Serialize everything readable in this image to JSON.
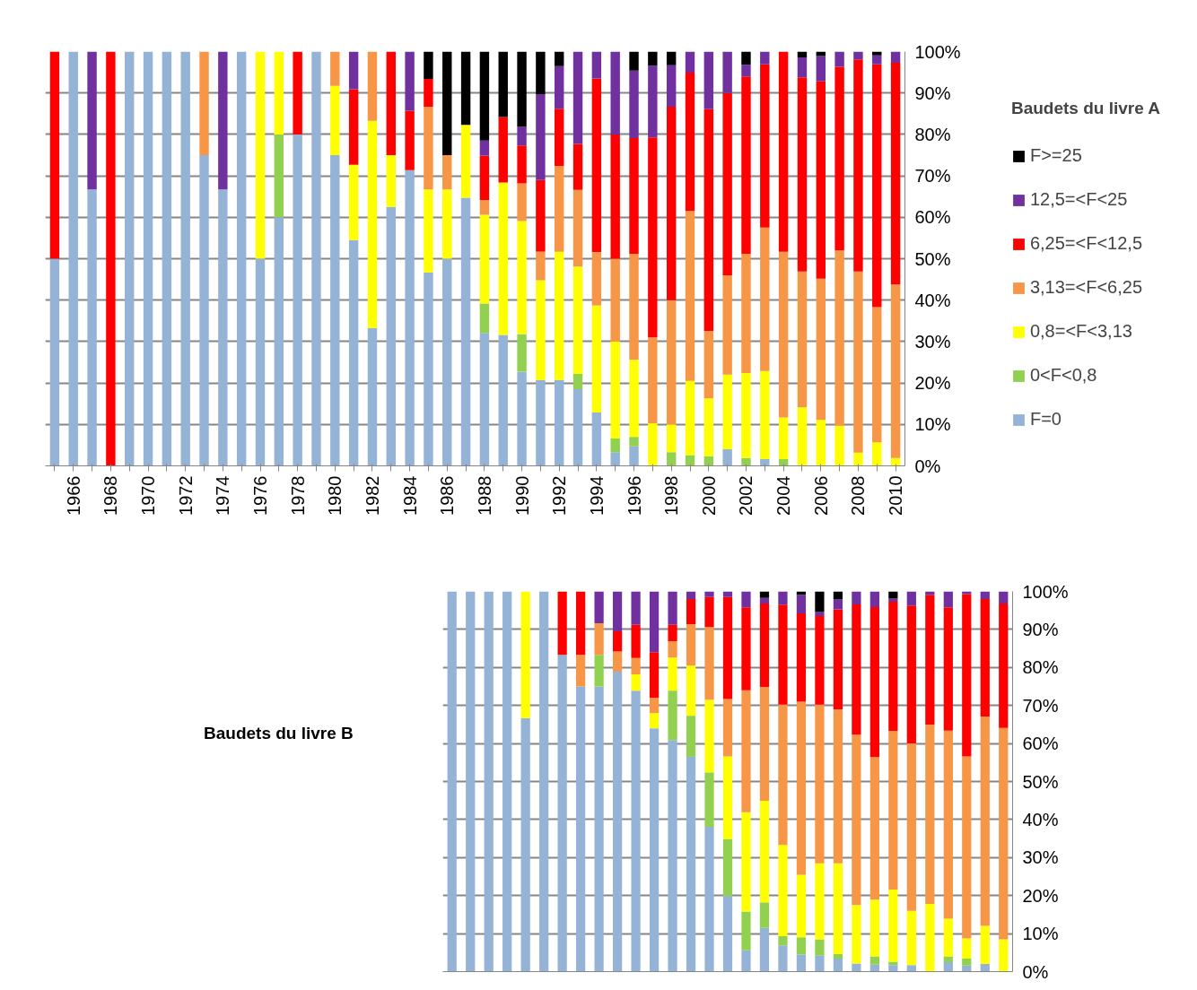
{
  "chart_data": [
    {
      "type": "bar",
      "stacked": true,
      "legend_title": "Baudets du livre A",
      "categories": [
        null,
        "1966",
        null,
        "1968",
        null,
        "1970",
        null,
        "1972",
        null,
        "1974",
        null,
        "1976",
        null,
        "1978",
        null,
        "1980",
        null,
        "1982",
        null,
        "1984",
        null,
        "1986",
        null,
        "1988",
        null,
        "1990",
        null,
        "1992",
        null,
        "1994",
        null,
        "1996",
        null,
        "1998",
        null,
        "2000",
        null,
        "2002",
        null,
        "2004",
        null,
        "2006",
        null,
        "2008",
        null,
        "2010"
      ],
      "series": [
        {
          "name": "F=0",
          "color": "#95b3d7",
          "values": [
            50,
            100,
            66.7,
            0,
            100,
            100,
            100,
            100,
            75,
            66.7,
            100,
            50,
            60,
            80,
            100,
            75,
            54.5,
            33.3,
            62.5,
            71.4,
            46.7,
            50,
            64.7,
            32.1,
            31.6,
            22.7,
            20.7,
            20.7,
            18.5,
            12.9,
            3.3,
            4.7,
            0,
            0,
            0,
            0,
            4,
            0,
            1.6,
            0,
            0,
            0,
            0,
            0,
            0,
            0
          ]
        },
        {
          "name": "0<F<0,8",
          "color": "#92d050",
          "values": [
            0,
            0,
            0,
            0,
            0,
            0,
            0,
            0,
            0,
            0,
            0,
            0,
            20,
            0,
            0,
            0,
            0,
            0,
            0,
            0,
            0,
            0,
            0,
            7.1,
            0,
            9.1,
            0,
            0,
            3.7,
            0,
            3.3,
            2.3,
            0,
            3.3,
            2.6,
            2.3,
            0,
            1.9,
            0,
            1.6,
            0,
            0,
            0,
            0,
            0,
            0
          ]
        },
        {
          "name": "0,8=<F<3,13",
          "color": "#ffff00",
          "values": [
            0,
            0,
            0,
            0,
            0,
            0,
            0,
            0,
            0,
            0,
            0,
            50,
            20,
            0,
            0,
            16.7,
            18.2,
            50,
            12.5,
            0,
            20,
            16.7,
            17.6,
            21.4,
            36.8,
            27.3,
            24.1,
            31.0,
            25.9,
            25.8,
            23.4,
            18.6,
            10.3,
            6.7,
            17.9,
            14.0,
            18,
            20.5,
            21.3,
            10.1,
            14.1,
            11.1,
            9.7,
            3.2,
            5.7,
            1.9
          ]
        },
        {
          "name": "3,13=<F<6,25",
          "color": "#f79646",
          "values": [
            0,
            0,
            0,
            0,
            0,
            0,
            0,
            0,
            25,
            0,
            0,
            0,
            0,
            0,
            0,
            8.3,
            0,
            16.7,
            0,
            0,
            20,
            8.3,
            0,
            3.6,
            0,
            9.1,
            6.9,
            20.7,
            18.5,
            12.9,
            20,
            25.6,
            20.7,
            30,
            41.0,
            16.3,
            24,
            28.8,
            34.6,
            40.0,
            32.8,
            34.1,
            42.3,
            43.7,
            32.6,
            41.9
          ]
        },
        {
          "name": "6,25=<F<12,5",
          "color": "#ff0000",
          "values": [
            50,
            0,
            0,
            100,
            0,
            0,
            0,
            0,
            0,
            0,
            0,
            0,
            0,
            20,
            0,
            0,
            18.2,
            0,
            25,
            14.3,
            6.7,
            0,
            0,
            10.7,
            15.8,
            9.1,
            17.3,
            13.8,
            11.1,
            41.9,
            30,
            27.9,
            48.3,
            46.7,
            33.4,
            53.5,
            44,
            42.8,
            39.4,
            48.3,
            46.9,
            47.6,
            44.3,
            51.2,
            58.6,
            53.5
          ]
        },
        {
          "name": "12,5=<F<25",
          "color": "#7030a0",
          "values": [
            0,
            0,
            33.3,
            0,
            0,
            0,
            0,
            0,
            0,
            33.3,
            0,
            0,
            0,
            0,
            0,
            0,
            9.1,
            0,
            0,
            14.3,
            0,
            0,
            0,
            3.6,
            0,
            4.5,
            20.7,
            10.3,
            22.3,
            6.5,
            20,
            16.3,
            17.3,
            10,
            5.1,
            13.9,
            10,
            2.8,
            3.1,
            0,
            4.8,
            6.1,
            3.7,
            1.9,
            2.2,
            2.7
          ]
        },
        {
          "name": "F>=25",
          "color": "#000000",
          "values": [
            0,
            0,
            0,
            0,
            0,
            0,
            0,
            0,
            0,
            0,
            0,
            0,
            0,
            0,
            0,
            0,
            0,
            0,
            0,
            0,
            6.6,
            25,
            17.7,
            21.5,
            15.8,
            18.2,
            10.3,
            3.5,
            0,
            0,
            0,
            4.6,
            3.4,
            3.3,
            0,
            0,
            0,
            3.2,
            0,
            0,
            1.4,
            1.1,
            0,
            0,
            0.9,
            0
          ]
        }
      ],
      "ylim": [
        0,
        100
      ],
      "yticks": [
        {
          "value": 0,
          "label": "0%"
        },
        {
          "value": 10,
          "label": "10%"
        },
        {
          "value": 20,
          "label": "20%"
        },
        {
          "value": 30,
          "label": "30%"
        },
        {
          "value": 40,
          "label": "40%"
        },
        {
          "value": 50,
          "label": "50%"
        },
        {
          "value": 60,
          "label": "60%"
        },
        {
          "value": 70,
          "label": "70%"
        },
        {
          "value": 80,
          "label": "80%"
        },
        {
          "value": 90,
          "label": "90%"
        },
        {
          "value": 100,
          "label": "100%"
        }
      ],
      "grid": "y",
      "legend": "right"
    },
    {
      "type": "bar",
      "stacked": true,
      "title": "Baudets du livre B",
      "categories": [
        null,
        null,
        null,
        null,
        null,
        null,
        null,
        null,
        null,
        null,
        null,
        null,
        null,
        null,
        null,
        null,
        null,
        null,
        null,
        null,
        null,
        null,
        null,
        null,
        null,
        null,
        null,
        null,
        null,
        null,
        null
      ],
      "series": [
        {
          "color": "#95b3d7",
          "values": [
            100,
            100,
            100,
            100,
            66.7,
            100,
            83.3,
            75,
            75,
            78.9,
            73.9,
            64,
            60.9,
            56.5,
            38.1,
            19.9,
            5.6,
            11.5,
            6.9,
            4.5,
            4.2,
            3.4,
            2.1,
            1.8,
            1.7,
            1.7,
            0,
            2.5,
            1.6,
            2.0,
            0
          ]
        },
        {
          "color": "#92d050",
          "values": [
            0,
            0,
            0,
            0,
            0,
            0,
            0,
            0,
            8.3,
            0,
            0,
            0,
            13.0,
            10.8,
            14.3,
            15.0,
            10.2,
            6.7,
            2.4,
            4.5,
            4.3,
            1.2,
            0,
            2.2,
            0.9,
            0,
            0,
            1.5,
            1.8,
            0,
            0
          ]
        },
        {
          "color": "#ffff00",
          "values": [
            0,
            0,
            0,
            0,
            33.3,
            0,
            0,
            0,
            0,
            0,
            4.3,
            4,
            8.7,
            13.2,
            19.1,
            21.7,
            26.1,
            26.7,
            24.0,
            16.5,
            20.0,
            23.9,
            15.4,
            14.9,
            19.0,
            14.3,
            17.8,
            9.9,
            5.3,
            10.0,
            8.5
          ]
        },
        {
          "color": "#f79646",
          "values": [
            0,
            0,
            0,
            0,
            0,
            0,
            0,
            8.3,
            8.3,
            5.3,
            4.3,
            4,
            4.3,
            10.9,
            19.1,
            15.1,
            32.1,
            30.0,
            36.9,
            45.5,
            41.7,
            40.5,
            44.8,
            37.5,
            41.7,
            44.0,
            47.2,
            49.5,
            47.9,
            55.1,
            55.6
          ]
        },
        {
          "color": "#ff0000",
          "values": [
            0,
            0,
            0,
            0,
            0,
            0,
            16.7,
            16.7,
            0,
            5.3,
            8.7,
            12,
            4.3,
            6.6,
            7.9,
            26.8,
            21.8,
            21.9,
            26.3,
            23.2,
            23.3,
            26.3,
            34.3,
            39.5,
            34.0,
            36.3,
            34.1,
            32.4,
            42.7,
            30.9,
            32.7
          ]
        },
        {
          "color": "#7030a0",
          "values": [
            0,
            0,
            0,
            0,
            0,
            0,
            0,
            0,
            8.4,
            10.5,
            8.8,
            16,
            8.8,
            2.0,
            1.5,
            1.5,
            4.2,
            1.5,
            3.5,
            4.9,
            1.1,
            2.6,
            3.4,
            4.1,
            0.8,
            3.7,
            0.9,
            4.2,
            0.7,
            2.0,
            3.2
          ]
        },
        {
          "color": "#000000",
          "values": [
            0,
            0,
            0,
            0,
            0,
            0,
            0,
            0,
            0,
            0,
            0,
            0,
            0,
            0,
            0,
            0,
            0,
            1.7,
            0,
            0.9,
            5.4,
            2.1,
            0,
            0,
            1.9,
            0,
            0,
            0,
            0,
            0,
            0
          ]
        }
      ],
      "ylim": [
        0,
        100
      ],
      "yticks": [
        {
          "value": 0,
          "label": "0%"
        },
        {
          "value": 10,
          "label": "10%"
        },
        {
          "value": 20,
          "label": "20%"
        },
        {
          "value": 30,
          "label": "30%"
        },
        {
          "value": 40,
          "label": "40%"
        },
        {
          "value": 50,
          "label": "50%"
        },
        {
          "value": 60,
          "label": "60%"
        },
        {
          "value": 70,
          "label": "70%"
        },
        {
          "value": 80,
          "label": "80%"
        },
        {
          "value": 90,
          "label": "90%"
        },
        {
          "value": 100,
          "label": "100%"
        }
      ],
      "grid": "y",
      "tick_labels": "y"
    }
  ]
}
